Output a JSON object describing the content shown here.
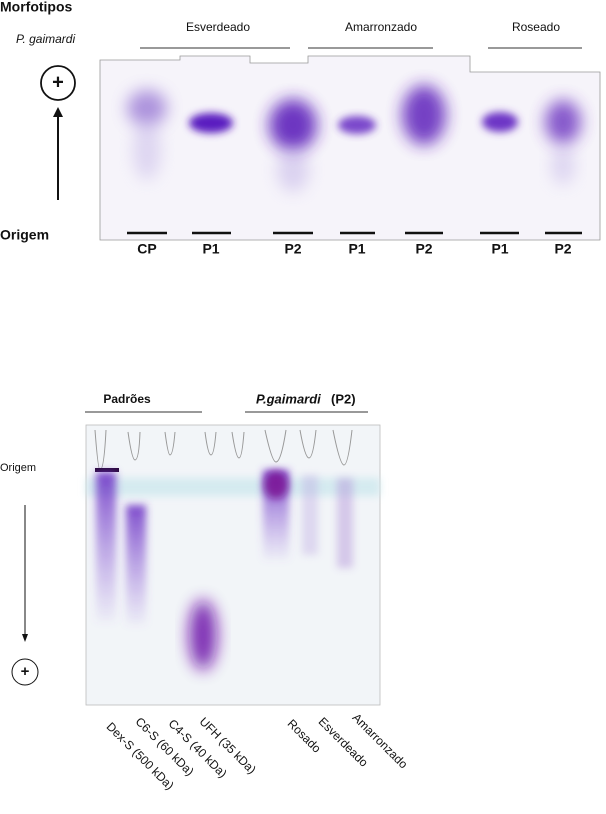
{
  "top_panel": {
    "heading": "Morfotipos",
    "species": "P. gaimardi",
    "groups": [
      "Esverdeado",
      "Amarronzado",
      "Roseado"
    ],
    "positive_pole": "+",
    "origin": "Origem",
    "lanes": [
      "CP",
      "P1",
      "P2",
      "P1",
      "P2",
      "P1",
      "P2"
    ]
  },
  "bottom_panel": {
    "standards": "Padrões",
    "species": "P.gaimardi",
    "sample": "(P2)",
    "origin": "Origem",
    "positive_pole": "+",
    "lanes": [
      "Dex-S (500 kDa)",
      "C6-S (60 kDa)",
      "C4-S (40 kDa)",
      "UFH (35 kDa)",
      "Rosado",
      "Esverdeado",
      "Amarronzado"
    ]
  }
}
